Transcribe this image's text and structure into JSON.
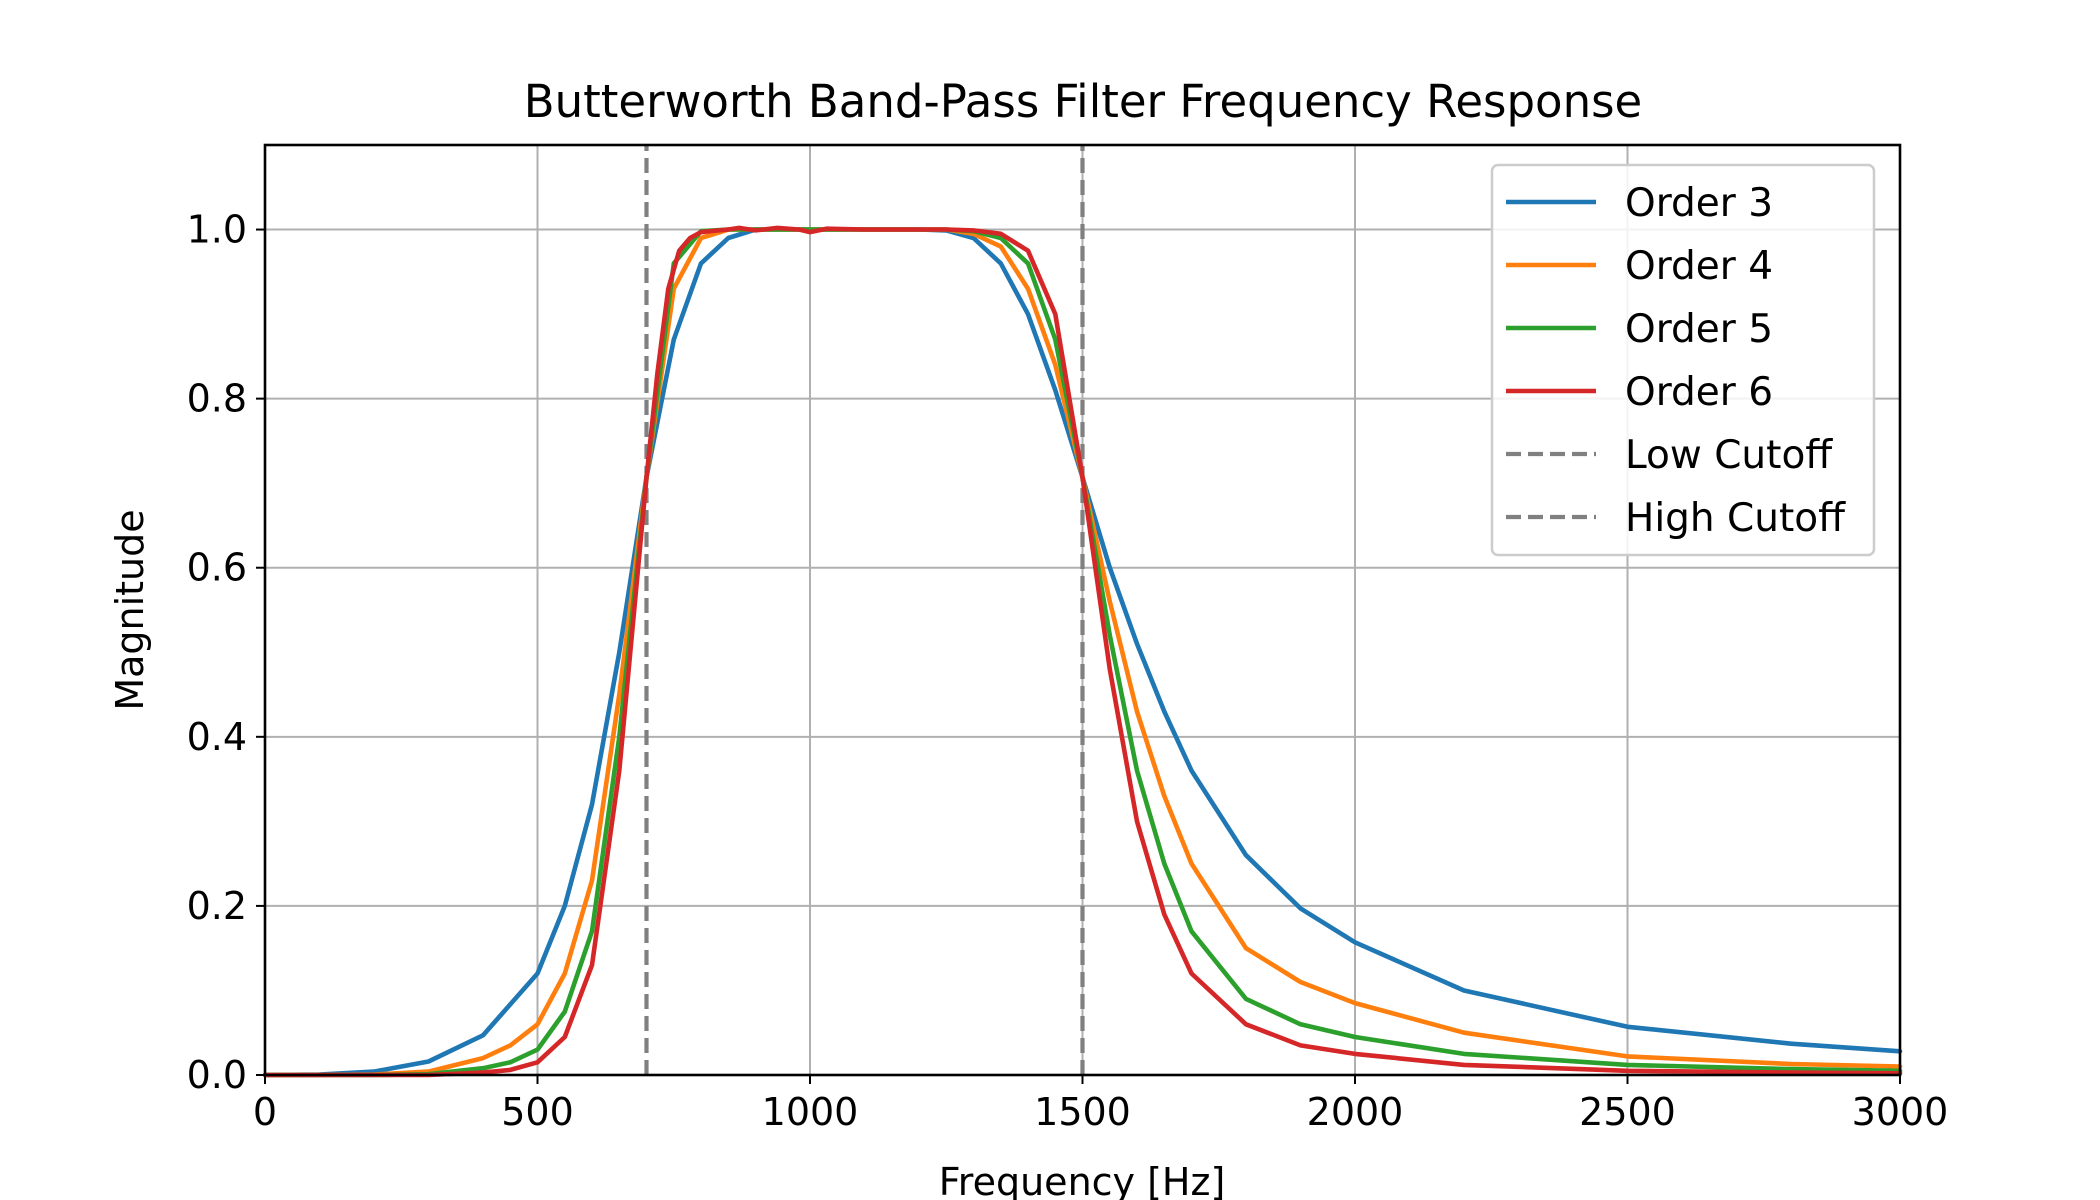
{
  "chart_data": {
    "type": "line",
    "title": "Butterworth Band-Pass Filter Frequency Response",
    "xlabel": "Frequency [Hz]",
    "ylabel": "Magnitude",
    "xlim": [
      0,
      3000
    ],
    "ylim": [
      0,
      1.1
    ],
    "xticks": [
      "0",
      "500",
      "1000",
      "1500",
      "2000",
      "2500",
      "3000"
    ],
    "yticks": [
      "0.0",
      "0.2",
      "0.4",
      "0.6",
      "0.8",
      "1.0"
    ],
    "grid": true,
    "legend_position": "top-right",
    "series": [
      {
        "name": "Order 3",
        "color": "#1f77b4",
        "x": [
          0,
          100,
          200,
          300,
          400,
          500,
          550,
          600,
          650,
          700,
          750,
          800,
          850,
          900,
          1000,
          1100,
          1200,
          1250,
          1300,
          1350,
          1400,
          1450,
          1500,
          1550,
          1600,
          1650,
          1700,
          1800,
          1900,
          2000,
          2200,
          2500,
          2800,
          3000
        ],
        "values": [
          0.0,
          0.0005,
          0.004,
          0.016,
          0.047,
          0.12,
          0.2,
          0.32,
          0.5,
          0.707,
          0.87,
          0.96,
          0.99,
          1.0,
          1.0,
          1.0,
          1.0,
          0.999,
          0.99,
          0.96,
          0.9,
          0.81,
          0.707,
          0.6,
          0.51,
          0.43,
          0.36,
          0.26,
          0.197,
          0.157,
          0.1,
          0.057,
          0.037,
          0.028
        ]
      },
      {
        "name": "Order 4",
        "color": "#ff7f0e",
        "x": [
          0,
          100,
          200,
          300,
          400,
          450,
          500,
          550,
          600,
          650,
          700,
          750,
          800,
          850,
          900,
          1000,
          1100,
          1200,
          1250,
          1300,
          1350,
          1400,
          1450,
          1500,
          1550,
          1600,
          1650,
          1700,
          1800,
          1900,
          2000,
          2200,
          2500,
          2800,
          3000
        ],
        "values": [
          0.0,
          0.0,
          0.0005,
          0.004,
          0.02,
          0.035,
          0.06,
          0.12,
          0.23,
          0.45,
          0.707,
          0.93,
          0.99,
          1.0,
          1.0,
          1.0,
          1.0,
          1.0,
          1.0,
          0.995,
          0.98,
          0.93,
          0.84,
          0.707,
          0.56,
          0.43,
          0.33,
          0.25,
          0.15,
          0.11,
          0.085,
          0.05,
          0.022,
          0.013,
          0.01
        ]
      },
      {
        "name": "Order 5",
        "color": "#2ca02c",
        "x": [
          0,
          100,
          200,
          300,
          400,
          450,
          500,
          550,
          600,
          650,
          700,
          750,
          800,
          850,
          900,
          1000,
          1100,
          1200,
          1250,
          1300,
          1350,
          1400,
          1450,
          1500,
          1550,
          1600,
          1650,
          1700,
          1800,
          1900,
          2000,
          2200,
          2500,
          2800,
          3000
        ],
        "values": [
          0.0,
          0.0,
          0.0,
          0.001,
          0.008,
          0.015,
          0.03,
          0.075,
          0.17,
          0.4,
          0.707,
          0.96,
          0.998,
          1.0,
          1.0,
          1.0,
          1.0,
          1.0,
          1.0,
          0.998,
          0.99,
          0.96,
          0.87,
          0.707,
          0.52,
          0.36,
          0.25,
          0.17,
          0.09,
          0.06,
          0.045,
          0.025,
          0.012,
          0.007,
          0.005
        ]
      },
      {
        "name": "Order 6",
        "color": "#d62728",
        "x": [
          0,
          100,
          200,
          300,
          400,
          450,
          500,
          550,
          600,
          650,
          700,
          720,
          740,
          760,
          780,
          800,
          850,
          870,
          900,
          940,
          980,
          1000,
          1030,
          1100,
          1200,
          1250,
          1300,
          1350,
          1400,
          1450,
          1500,
          1550,
          1600,
          1650,
          1700,
          1800,
          1900,
          2000,
          2200,
          2500,
          2800,
          3000
        ],
        "values": [
          0.0,
          0.0,
          0.0,
          0.0,
          0.003,
          0.006,
          0.015,
          0.045,
          0.13,
          0.36,
          0.707,
          0.83,
          0.93,
          0.975,
          0.99,
          0.997,
          1.0,
          1.002,
          0.999,
          1.002,
          1.0,
          0.997,
          1.001,
          1.0,
          1.0,
          1.0,
          0.999,
          0.995,
          0.975,
          0.9,
          0.707,
          0.48,
          0.3,
          0.19,
          0.12,
          0.06,
          0.035,
          0.025,
          0.012,
          0.005,
          0.003,
          0.002
        ]
      },
      {
        "name": "Low Cutoff",
        "color": "#808080",
        "dashed": true,
        "x": [
          700,
          700
        ],
        "values": [
          0,
          1.1
        ]
      },
      {
        "name": "High Cutoff",
        "color": "#808080",
        "dashed": true,
        "x": [
          1500,
          1500
        ],
        "values": [
          0,
          1.1
        ]
      }
    ]
  }
}
